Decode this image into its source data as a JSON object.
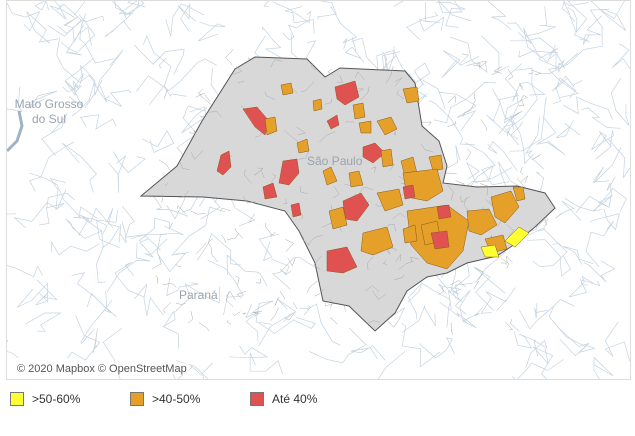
{
  "map": {
    "region_labels": [
      "Mato Grosso do Sul",
      "São Paulo",
      "Paraná"
    ],
    "attribution": "© 2020 Mapbox © OpenStreetMap"
  },
  "legend": {
    "items": [
      {
        "label": ">50-60%",
        "color": "#ffff33"
      },
      {
        "label": ">40-50%",
        "color": "#e5a02a"
      },
      {
        "label": "Até 40%",
        "color": "#e05252"
      }
    ]
  }
}
